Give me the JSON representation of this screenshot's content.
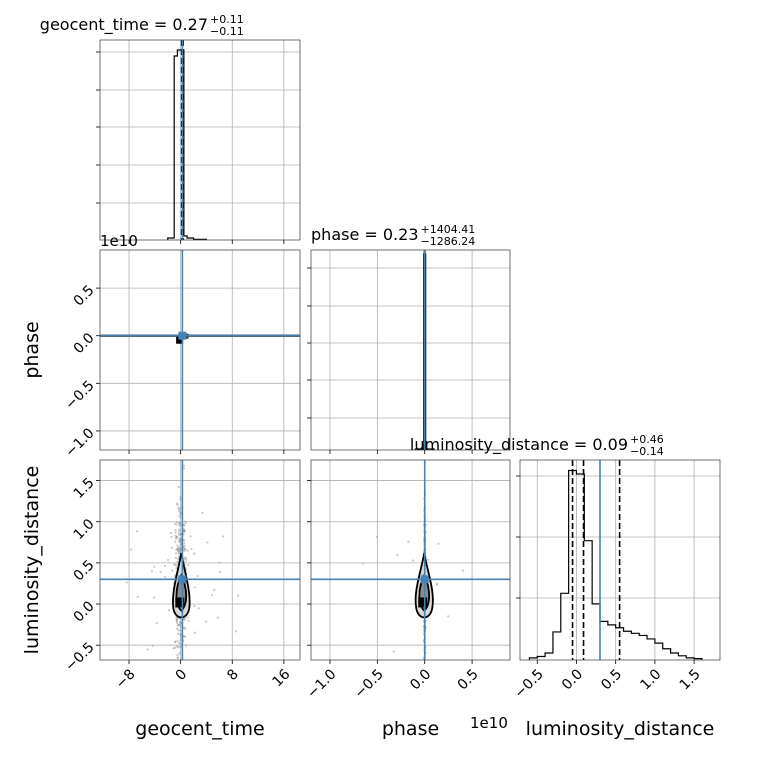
{
  "chart_data": {
    "type": "corner",
    "parameters": [
      "geocent_time",
      "phase",
      "luminosity_distance"
    ],
    "truths": {
      "geocent_time": 0.27,
      "phase": 0.0,
      "luminosity_distance": 0.3
    },
    "panels": {
      "geocent_time": {
        "title": {
          "name": "geocent_time",
          "median": "0.27",
          "upper": "+0.11",
          "lower": "−0.11"
        },
        "xlim": [
          -12.5,
          18.5
        ],
        "xticks": [
          -8,
          0,
          8,
          16
        ],
        "xtick_labels": [
          "−8",
          "0",
          "8",
          "16"
        ],
        "hist": {
          "edges": [
            -2.0,
            -1.0,
            -0.5,
            0.0,
            0.5,
            1.0,
            2.0,
            4.0
          ],
          "counts": [
            0.01,
            0.92,
            0.95,
            0.95,
            0.02,
            0.01,
            0.003
          ]
        },
        "quantiles": [
          0.16,
          0.27,
          0.38
        ]
      },
      "phase": {
        "title": {
          "name": "phase",
          "median": "0.23",
          "upper": "+1404.41",
          "lower": "−1286.24"
        },
        "xlim": [
          -1.2,
          0.9
        ],
        "xticks": [
          -1.0,
          -0.5,
          0.0,
          0.5
        ],
        "xtick_labels": [
          "−1.0",
          "−0.5",
          "0.0",
          "0.5"
        ],
        "offset_label": "1e10",
        "hist": {
          "edges": [
            -0.1,
            -0.01,
            0.0,
            0.01,
            0.1
          ],
          "counts": [
            0.005,
            0.98,
            0.98,
            0.005
          ]
        },
        "quantiles": [
          -0.002,
          0.0,
          0.002
        ]
      },
      "luminosity_distance": {
        "title": {
          "name": "luminosity_distance",
          "median": "0.09",
          "upper": "+0.46",
          "lower": "−0.14"
        },
        "xlim": [
          -0.72,
          1.83
        ],
        "xticks": [
          -0.5,
          0.0,
          0.5,
          1.0,
          1.5
        ],
        "xtick_labels": [
          "−0.5",
          "0.0",
          "0.5",
          "1.0",
          "1.5"
        ],
        "hist": {
          "edges": [
            -0.6,
            -0.5,
            -0.4,
            -0.3,
            -0.2,
            -0.1,
            0.0,
            0.1,
            0.2,
            0.3,
            0.4,
            0.5,
            0.6,
            0.7,
            0.8,
            0.9,
            1.0,
            1.1,
            1.2,
            1.3,
            1.4,
            1.5,
            1.6
          ],
          "counts": [
            3,
            5,
            10,
            40,
            95,
            270,
            265,
            170,
            80,
            55,
            50,
            46,
            41,
            38,
            35,
            30,
            24,
            16,
            10,
            6,
            3,
            2
          ]
        },
        "quantiles": [
          -0.05,
          0.09,
          0.55
        ]
      }
    },
    "row_labels": {
      "phase": {
        "yticks": [
          -1.0,
          -0.5,
          0.0,
          0.5
        ],
        "ytick_labels": [
          "−1.0",
          "−0.5",
          "0.0",
          "0.5"
        ],
        "offset_label": "1e10",
        "ylim": [
          -1.2,
          0.9
        ]
      },
      "luminosity_distance": {
        "yticks": [
          -0.5,
          0.0,
          0.5,
          1.0,
          1.5
        ],
        "ytick_labels": [
          "−0.5",
          "0.0",
          "0.5",
          "1.0",
          "1.5"
        ],
        "ylim": [
          -0.68,
          1.75
        ]
      }
    },
    "x_axis_labels": [
      "geocent_time",
      "phase",
      "luminosity_distance"
    ],
    "y_axis_labels": [
      "phase",
      "luminosity_distance"
    ],
    "colors": {
      "truth": "#4682b4",
      "hist": "#000000",
      "grid": "#b0b0b0",
      "scatter": "#9a9a9a"
    },
    "grid": true
  }
}
